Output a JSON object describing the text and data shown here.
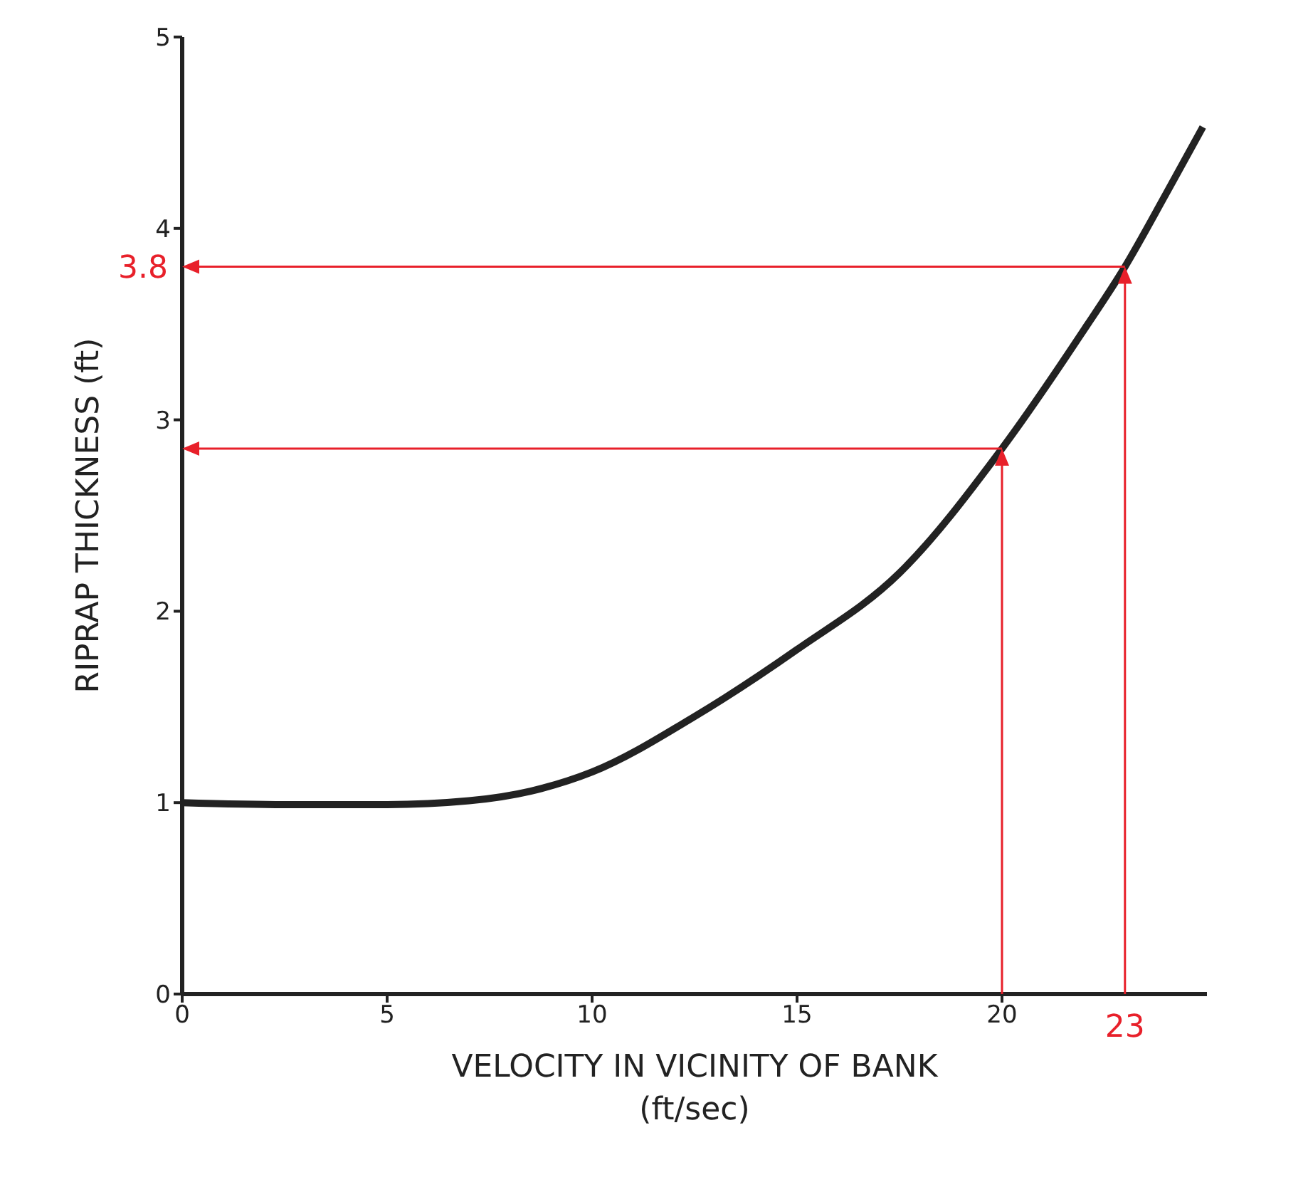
{
  "chart_data": {
    "type": "line",
    "xlabel": "VELOCITY IN VICINITY OF BANK\n(ft/sec)",
    "ylabel": "RIPRAP THICKNESS (ft)",
    "xlim": [
      0,
      25
    ],
    "ylim": [
      0,
      5
    ],
    "xticks": [
      0,
      5,
      10,
      15,
      20
    ],
    "yticks": [
      0,
      1,
      2,
      3,
      4,
      5
    ],
    "series": [
      {
        "color": "#222222",
        "x": [
          0,
          2.5,
          5,
          7,
          8.5,
          10,
          12.5,
          15,
          17.5,
          20,
          22,
          23,
          24,
          24.9
        ],
        "values": [
          1.0,
          0.99,
          0.99,
          1.01,
          1.06,
          1.16,
          1.45,
          1.8,
          2.2,
          2.85,
          3.47,
          3.8,
          4.18,
          4.53
        ]
      }
    ],
    "ref_lines": [
      {
        "axis": "y",
        "value": 2.85,
        "color": "#e8202a"
      },
      {
        "axis": "x",
        "value": 20,
        "color": "#e8202a"
      },
      {
        "axis": "y",
        "value": 3.8,
        "label": "3.8",
        "color": "#e8202a"
      },
      {
        "axis": "x",
        "value": 23,
        "label": "23",
        "color": "#e8202a"
      }
    ]
  }
}
